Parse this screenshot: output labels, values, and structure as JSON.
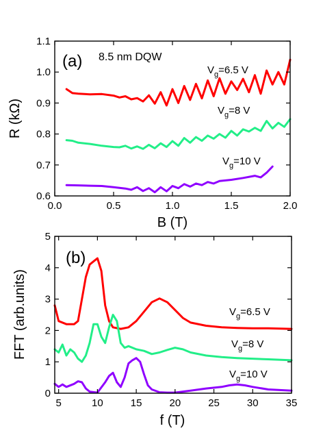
{
  "chart_data": [
    {
      "type": "line",
      "panel_label": "(a)",
      "annotation": "8.5 nm DQW",
      "xlabel": "B (T)",
      "ylabel": "R (kΩ)",
      "xlim": [
        0.0,
        2.0
      ],
      "ylim": [
        0.6,
        1.1
      ],
      "xticks": [
        "0.0",
        "0.5",
        "1.0",
        "1.5",
        "2.0"
      ],
      "yticks": [
        "0.6",
        "0.7",
        "0.8",
        "0.9",
        "1.0",
        "1.1"
      ],
      "grid": false,
      "series": [
        {
          "label_main": "V",
          "label_sub": "g",
          "label_rest": "=6.5 V",
          "color": "#ff0000",
          "x": [
            0.1,
            0.15,
            0.2,
            0.3,
            0.4,
            0.5,
            0.55,
            0.6,
            0.65,
            0.7,
            0.75,
            0.8,
            0.85,
            0.9,
            0.95,
            1.0,
            1.05,
            1.1,
            1.15,
            1.2,
            1.25,
            1.3,
            1.35,
            1.4,
            1.45,
            1.5,
            1.55,
            1.6,
            1.65,
            1.7,
            1.75,
            1.8,
            1.85,
            1.9,
            1.95,
            2.0
          ],
          "y": [
            0.945,
            0.932,
            0.93,
            0.928,
            0.929,
            0.924,
            0.918,
            0.922,
            0.912,
            0.916,
            0.905,
            0.925,
            0.898,
            0.935,
            0.892,
            0.945,
            0.9,
            0.955,
            0.91,
            0.962,
            0.915,
            0.973,
            0.922,
            0.98,
            0.93,
            0.97,
            0.942,
            0.978,
            0.935,
            0.99,
            0.93,
            1.005,
            0.96,
            1.0,
            0.96,
            1.04
          ]
        },
        {
          "label_main": "V",
          "label_sub": "g",
          "label_rest": "=8 V",
          "color": "#22ee88",
          "x": [
            0.1,
            0.15,
            0.2,
            0.3,
            0.4,
            0.5,
            0.55,
            0.6,
            0.65,
            0.7,
            0.75,
            0.8,
            0.85,
            0.9,
            0.95,
            1.0,
            1.05,
            1.1,
            1.15,
            1.2,
            1.25,
            1.3,
            1.35,
            1.4,
            1.45,
            1.5,
            1.55,
            1.6,
            1.65,
            1.7,
            1.75,
            1.8,
            1.85,
            1.9,
            1.95,
            2.0
          ],
          "y": [
            0.78,
            0.778,
            0.772,
            0.768,
            0.762,
            0.758,
            0.757,
            0.762,
            0.753,
            0.76,
            0.752,
            0.765,
            0.754,
            0.77,
            0.758,
            0.777,
            0.762,
            0.787,
            0.772,
            0.79,
            0.778,
            0.795,
            0.785,
            0.8,
            0.788,
            0.81,
            0.795,
            0.815,
            0.808,
            0.82,
            0.81,
            0.842,
            0.818,
            0.836,
            0.823,
            0.848
          ]
        },
        {
          "label_main": "V",
          "label_sub": "g",
          "label_rest": "=10 V",
          "color": "#8f00ff",
          "x": [
            0.1,
            0.2,
            0.3,
            0.4,
            0.5,
            0.6,
            0.65,
            0.7,
            0.75,
            0.8,
            0.85,
            0.9,
            0.95,
            1.0,
            1.05,
            1.1,
            1.15,
            1.2,
            1.25,
            1.3,
            1.35,
            1.4,
            1.5,
            1.6,
            1.7,
            1.75,
            1.8,
            1.85
          ],
          "y": [
            0.635,
            0.634,
            0.633,
            0.632,
            0.628,
            0.624,
            0.62,
            0.628,
            0.616,
            0.625,
            0.612,
            0.628,
            0.615,
            0.632,
            0.625,
            0.638,
            0.63,
            0.64,
            0.635,
            0.645,
            0.64,
            0.648,
            0.652,
            0.658,
            0.665,
            0.66,
            0.675,
            0.695
          ]
        }
      ]
    },
    {
      "type": "line",
      "panel_label": "(b)",
      "xlabel": "f (T)",
      "ylabel": "FFT (arb.units)",
      "xlim": [
        4.5,
        35
      ],
      "ylim": [
        0,
        5
      ],
      "xticks": [
        "5",
        "10",
        "15",
        "20",
        "25",
        "30",
        "35"
      ],
      "xtick_values": [
        5,
        10,
        15,
        20,
        25,
        30,
        35
      ],
      "yticks": [
        "0",
        "1",
        "2",
        "3",
        "4",
        "5"
      ],
      "grid": false,
      "series": [
        {
          "label_main": "V",
          "label_sub": "g",
          "label_rest": "=6.5 V",
          "color": "#ff0000",
          "x": [
            4.5,
            5,
            6,
            7,
            7.5,
            8,
            8.5,
            9,
            9.5,
            10,
            10.5,
            11,
            11.5,
            12,
            13,
            14,
            15,
            16,
            17,
            18,
            19,
            20,
            21,
            22,
            24,
            26,
            28,
            30,
            32,
            35
          ],
          "y": [
            2.8,
            2.3,
            2.2,
            2.2,
            2.3,
            3.0,
            3.7,
            4.1,
            4.2,
            4.3,
            3.9,
            2.8,
            2.3,
            2.1,
            2.05,
            2.1,
            2.3,
            2.6,
            2.9,
            3.02,
            2.9,
            2.65,
            2.4,
            2.25,
            2.15,
            2.1,
            2.08,
            2.07,
            2.07,
            2.05
          ]
        },
        {
          "label_main": "V",
          "label_sub": "g",
          "label_rest": "=8 V",
          "color": "#22ee88",
          "x": [
            4.5,
            5,
            5.5,
            6,
            6.5,
            7,
            7.5,
            8,
            8.5,
            9,
            9.5,
            10,
            10.5,
            11,
            11.5,
            12,
            12.5,
            13,
            13.5,
            14,
            15,
            16,
            17,
            18,
            19,
            20,
            21,
            22,
            24,
            26,
            28,
            30,
            32,
            35
          ],
          "y": [
            1.4,
            1.3,
            1.55,
            1.2,
            1.4,
            1.3,
            1.1,
            1.0,
            1.2,
            1.6,
            2.2,
            2.2,
            1.8,
            1.6,
            2.1,
            2.5,
            2.3,
            1.6,
            1.45,
            1.5,
            1.4,
            1.35,
            1.25,
            1.3,
            1.38,
            1.45,
            1.4,
            1.3,
            1.2,
            1.15,
            1.12,
            1.1,
            1.08,
            1.05
          ]
        },
        {
          "label_main": "V",
          "label_sub": "g",
          "label_rest": "=10 V",
          "color": "#8f00ff",
          "x": [
            4.5,
            5,
            5.5,
            6,
            7,
            7.5,
            8,
            8.5,
            9,
            10,
            11,
            11.5,
            12,
            12.5,
            13,
            13.5,
            14,
            14.5,
            15,
            15.5,
            16,
            16.5,
            17,
            18,
            19,
            20,
            22,
            24,
            26,
            27,
            28,
            29,
            30,
            32,
            35
          ],
          "y": [
            0.3,
            0.2,
            0.28,
            0.2,
            0.3,
            0.38,
            0.35,
            0.15,
            0.05,
            0.02,
            0.35,
            0.55,
            0.65,
            0.35,
            0.2,
            0.5,
            0.95,
            1.05,
            1.12,
            1.0,
            0.6,
            0.25,
            0.12,
            0.03,
            0.02,
            0.02,
            0.08,
            0.15,
            0.2,
            0.25,
            0.28,
            0.25,
            0.2,
            0.12,
            0.08
          ]
        }
      ]
    }
  ]
}
